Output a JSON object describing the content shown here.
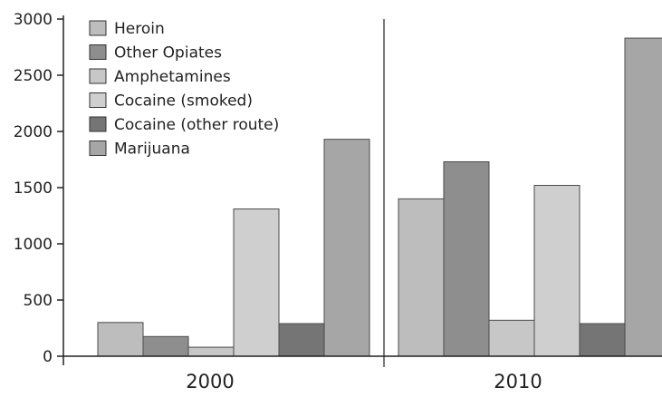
{
  "chart_data": {
    "type": "bar",
    "categories": [
      "2000",
      "2010"
    ],
    "series": [
      {
        "name": "Heroin",
        "values": [
          300,
          1400
        ]
      },
      {
        "name": "Other Opiates",
        "values": [
          175,
          1730
        ]
      },
      {
        "name": "Amphetamines",
        "values": [
          80,
          320
        ]
      },
      {
        "name": "Cocaine (smoked)",
        "values": [
          1310,
          1520
        ]
      },
      {
        "name": "Cocaine (other route)",
        "values": [
          290,
          290
        ]
      },
      {
        "name": "Marijuana",
        "values": [
          1930,
          2830
        ]
      }
    ],
    "title": "",
    "xlabel": "",
    "ylabel": "",
    "ylim": [
      0,
      3000
    ],
    "yticks": [
      "0",
      "500",
      "1000",
      "1500",
      "2000",
      "2500",
      "3000"
    ],
    "grid": false,
    "legend_position": "top-left",
    "colors": {
      "Heroin": "#bdbdbd",
      "Other Opiates": "#8e8e8e",
      "Amphetamines": "#c7c7c7",
      "Cocaine (smoked)": "#cfcfcf",
      "Cocaine (other route)": "#757575",
      "Marijuana": "#a6a6a6"
    }
  }
}
